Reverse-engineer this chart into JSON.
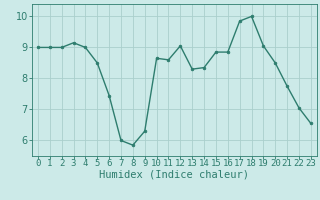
{
  "x": [
    0,
    1,
    2,
    3,
    4,
    5,
    6,
    7,
    8,
    9,
    10,
    11,
    12,
    13,
    14,
    15,
    16,
    17,
    18,
    19,
    20,
    21,
    22,
    23
  ],
  "y": [
    9.0,
    9.0,
    9.0,
    9.15,
    9.0,
    8.5,
    7.45,
    6.0,
    5.85,
    6.3,
    8.65,
    8.6,
    9.05,
    8.3,
    8.35,
    8.85,
    8.85,
    9.85,
    10.0,
    9.05,
    8.5,
    7.75,
    7.05,
    6.55
  ],
  "line_color": "#2e7d6e",
  "marker": "o",
  "marker_size": 2.0,
  "line_width": 1.0,
  "bg_color": "#cceae8",
  "grid_color": "#aacfcc",
  "tick_color": "#2e7d6e",
  "label_color": "#2e7d6e",
  "xlabel": "Humidex (Indice chaleur)",
  "xlabel_fontsize": 7.5,
  "tick_fontsize": 6.5,
  "ytick_fontsize": 7.0,
  "yticks": [
    6,
    7,
    8,
    9,
    10
  ],
  "xtick_labels": [
    "0",
    "1",
    "2",
    "3",
    "4",
    "5",
    "6",
    "7",
    "8",
    "9",
    "10",
    "11",
    "12",
    "13",
    "14",
    "15",
    "16",
    "17",
    "18",
    "19",
    "20",
    "21",
    "22",
    "23"
  ],
  "ylim": [
    5.5,
    10.4
  ],
  "xlim": [
    -0.5,
    23.5
  ]
}
